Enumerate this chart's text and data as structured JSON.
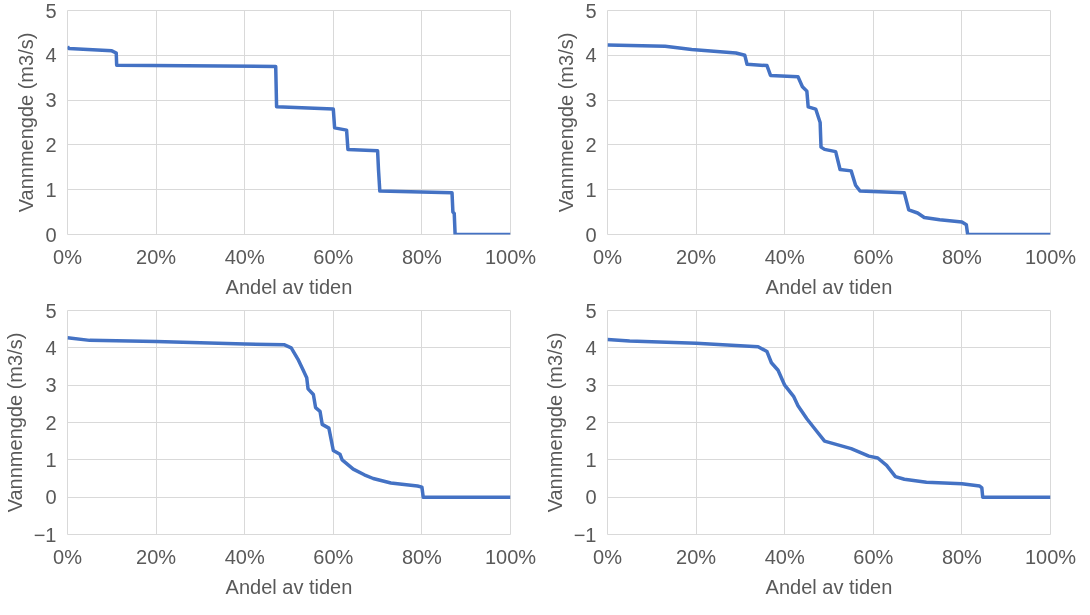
{
  "chart_data": [
    {
      "type": "line",
      "xlabel": "Andel av tiden",
      "ylabel": "Vannmengde (m3/s)",
      "xlim": [
        0,
        100
      ],
      "ylim": [
        0,
        5
      ],
      "yticks": [
        0,
        1,
        2,
        3,
        4,
        5
      ],
      "xticks": [
        {
          "value": 0,
          "label": "0%"
        },
        {
          "value": 20,
          "label": "20%"
        },
        {
          "value": 40,
          "label": "40%"
        },
        {
          "value": 60,
          "label": "60%"
        },
        {
          "value": 80,
          "label": "80%"
        },
        {
          "value": 100,
          "label": "100%"
        }
      ],
      "grid": true,
      "series": [
        {
          "color": "#4472c4",
          "x": [
            0,
            0.3,
            10,
            11,
            11.1,
            47,
            47.2,
            60,
            60.3,
            63,
            63.3,
            70,
            70.2,
            70.5,
            86.8,
            87,
            87.3,
            87.5,
            100
          ],
          "values": [
            4.2,
            4.15,
            4.1,
            4.05,
            3.78,
            3.75,
            2.85,
            2.8,
            2.38,
            2.33,
            1.9,
            1.87,
            1.45,
            0.97,
            0.93,
            0.5,
            0.47,
            0,
            0
          ]
        }
      ]
    },
    {
      "type": "line",
      "xlabel": "Andel av tiden",
      "ylabel": "Vannmengde (m3/s)",
      "xlim": [
        0,
        100
      ],
      "ylim": [
        0,
        5
      ],
      "yticks": [
        0,
        1,
        2,
        3,
        4,
        5
      ],
      "xticks": [
        {
          "value": 0,
          "label": "0%"
        },
        {
          "value": 20,
          "label": "20%"
        },
        {
          "value": 40,
          "label": "40%"
        },
        {
          "value": 60,
          "label": "60%"
        },
        {
          "value": 80,
          "label": "80%"
        },
        {
          "value": 100,
          "label": "100%"
        }
      ],
      "grid": true,
      "series": [
        {
          "color": "#4472c4",
          "x": [
            0,
            13,
            19,
            29,
            31,
            31.5,
            36,
            36.8,
            43,
            44,
            45,
            45.3,
            47,
            48,
            48.2,
            49,
            51.5,
            52.5,
            55,
            56,
            57,
            67,
            68,
            70,
            71.5,
            75,
            80,
            81,
            81.3,
            100
          ],
          "values": [
            4.23,
            4.2,
            4.13,
            4.05,
            4.0,
            3.8,
            3.77,
            3.55,
            3.52,
            3.3,
            3.2,
            2.85,
            2.8,
            2.5,
            1.95,
            1.9,
            1.85,
            1.45,
            1.42,
            1.1,
            0.97,
            0.93,
            0.55,
            0.48,
            0.38,
            0.33,
            0.28,
            0.22,
            0,
            0
          ]
        }
      ]
    },
    {
      "type": "line",
      "xlabel": "Andel av tiden",
      "ylabel": "Vannmengde (m3/s)",
      "xlim": [
        0,
        100
      ],
      "ylim": [
        -1,
        5
      ],
      "yticks": [
        -1,
        0,
        1,
        2,
        3,
        4,
        5
      ],
      "xticks": [
        {
          "value": 0,
          "label": "0%"
        },
        {
          "value": 20,
          "label": "20%"
        },
        {
          "value": 40,
          "label": "40%"
        },
        {
          "value": 60,
          "label": "60%"
        },
        {
          "value": 80,
          "label": "80%"
        },
        {
          "value": 100,
          "label": "100%"
        }
      ],
      "grid": true,
      "series": [
        {
          "color": "#4472c4",
          "x": [
            0,
            5,
            20,
            40,
            49,
            50.5,
            52,
            53,
            54,
            54.3,
            55.5,
            56,
            57,
            57.5,
            59,
            60,
            61.5,
            62,
            64.5,
            67,
            69,
            73,
            79,
            80,
            80.3,
            100
          ],
          "values": [
            4.27,
            4.2,
            4.17,
            4.1,
            4.08,
            4.0,
            3.7,
            3.45,
            3.2,
            2.9,
            2.75,
            2.4,
            2.3,
            1.95,
            1.85,
            1.25,
            1.15,
            1.0,
            0.75,
            0.6,
            0.5,
            0.38,
            0.3,
            0.27,
            0,
            0
          ]
        }
      ]
    },
    {
      "type": "line",
      "xlabel": "Andel av tiden",
      "ylabel": "Vannmengde (m3/s)",
      "xlim": [
        0,
        100
      ],
      "ylim": [
        -1,
        5
      ],
      "yticks": [
        -1,
        0,
        1,
        2,
        3,
        4,
        5
      ],
      "xticks": [
        {
          "value": 0,
          "label": "0%"
        },
        {
          "value": 20,
          "label": "20%"
        },
        {
          "value": 40,
          "label": "40%"
        },
        {
          "value": 60,
          "label": "60%"
        },
        {
          "value": 80,
          "label": "80%"
        },
        {
          "value": 100,
          "label": "100%"
        }
      ],
      "grid": true,
      "series": [
        {
          "color": "#4472c4",
          "x": [
            0,
            5,
            20,
            34,
            36,
            37,
            38.5,
            40,
            42,
            43,
            45,
            47,
            49,
            55,
            59,
            61,
            63,
            65,
            67,
            72,
            80,
            84,
            84.5,
            84.7,
            100
          ],
          "values": [
            4.22,
            4.18,
            4.12,
            4.03,
            3.9,
            3.6,
            3.4,
            3.0,
            2.7,
            2.45,
            2.1,
            1.8,
            1.5,
            1.3,
            1.1,
            1.05,
            0.85,
            0.55,
            0.48,
            0.4,
            0.36,
            0.3,
            0.25,
            0,
            0
          ]
        }
      ]
    }
  ]
}
